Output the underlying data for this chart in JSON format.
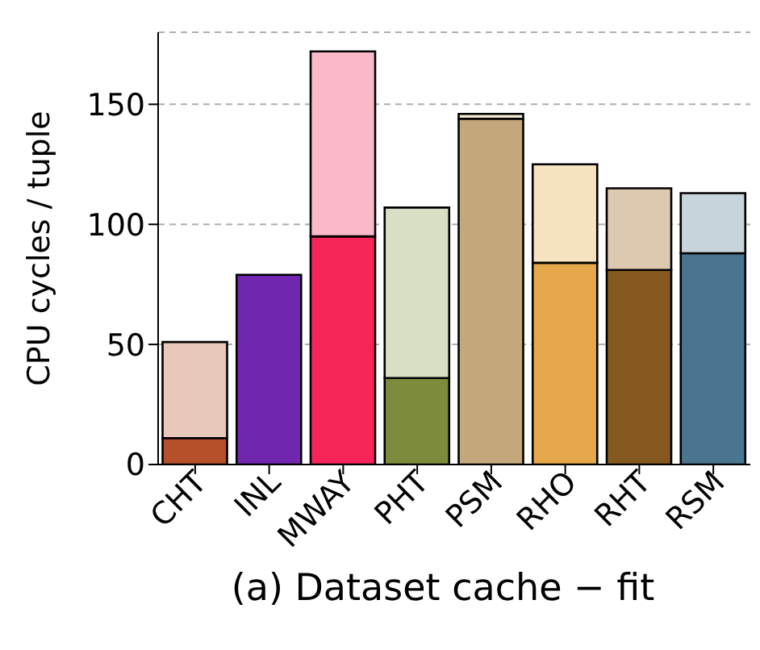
{
  "chart_data": {
    "type": "bar",
    "title": "(a) Dataset cache − fit",
    "ylabel": "CPU cycles / tuple",
    "categories": [
      "CHT",
      "INL",
      "MWAY",
      "PHT",
      "PSM",
      "RHO",
      "RHT",
      "RSM"
    ],
    "stacked": true,
    "series": [
      {
        "colors": [
          "#b5502a",
          "#7126b0",
          "#f7245a",
          "#7b8c3c",
          "#c4a87c",
          "#e5a84a",
          "#85581f",
          "#4a7590"
        ],
        "values": [
          11,
          79,
          95,
          36,
          144,
          84,
          81,
          88
        ]
      },
      {
        "colors": [
          "#e8c8b8",
          "#7126b0",
          "#fbb8c8",
          "#d8dfc4",
          "#f2e6d0",
          "#f7e2c0",
          "#ddc9b0",
          "#c8d4dc"
        ],
        "values": [
          40,
          null,
          77,
          71,
          2,
          41,
          34,
          25
        ]
      }
    ],
    "ylim": [
      0,
      180
    ],
    "yticks": [
      0,
      50,
      100,
      150
    ],
    "grid": "y"
  }
}
